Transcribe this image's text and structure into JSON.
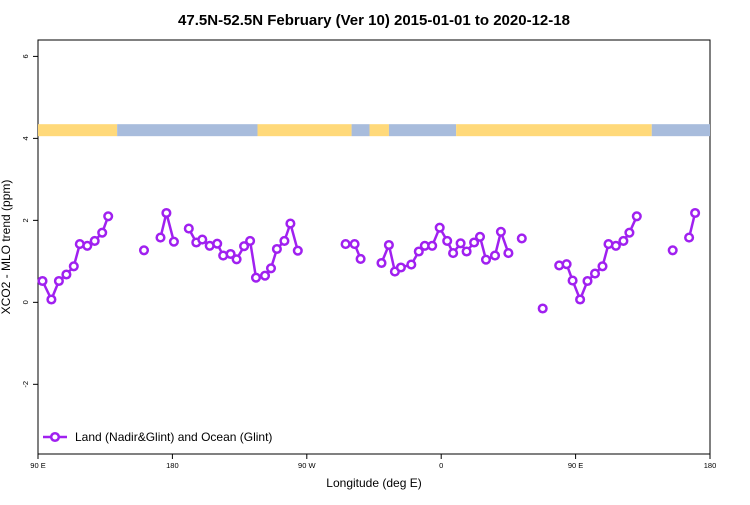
{
  "colors": {
    "series": "#a020f0",
    "land": "#ffd97a",
    "ocean": "#a8bcdc",
    "axis": "#000000",
    "background": "#ffffff"
  },
  "chart_data": {
    "type": "line",
    "title": "47.5N-52.5N February (Ver 10)   2015-01-01 to 2020-12-18",
    "xlabel": "Longitude (deg E)",
    "ylabel": "XCO2 - MLO trend (ppm)",
    "xlim": [
      90,
      540
    ],
    "ylim": [
      -3.7,
      6.4
    ],
    "x_ticks": [
      {
        "value": 90,
        "label": "90 E"
      },
      {
        "value": 180,
        "label": "180"
      },
      {
        "value": 270,
        "label": "90 W"
      },
      {
        "value": 360,
        "label": "0"
      },
      {
        "value": 450,
        "label": "90 E"
      },
      {
        "value": 540,
        "label": "180"
      }
    ],
    "y_ticks": [
      {
        "value": -2,
        "label": "-2"
      },
      {
        "value": 0,
        "label": "0"
      },
      {
        "value": 2,
        "label": "2"
      },
      {
        "value": 4,
        "label": "4"
      },
      {
        "value": 6,
        "label": "6"
      }
    ],
    "legend": {
      "position": "bottom-left",
      "entries": [
        "Land (Nadir&Glint) and Ocean (Glint)"
      ]
    },
    "surface_strip": {
      "y_center": 4.2,
      "segments": [
        {
          "type": "land",
          "from": 90,
          "to": 143
        },
        {
          "type": "ocean",
          "from": 143,
          "to": 237
        },
        {
          "type": "land",
          "from": 237,
          "to": 300
        },
        {
          "type": "ocean",
          "from": 300,
          "to": 312
        },
        {
          "type": "land",
          "from": 312,
          "to": 325
        },
        {
          "type": "ocean",
          "from": 325,
          "to": 370
        },
        {
          "type": "land",
          "from": 370,
          "to": 501
        },
        {
          "type": "ocean",
          "from": 501,
          "to": 540
        }
      ]
    },
    "series": [
      {
        "name": "Land (Nadir&Glint) and Ocean (Glint)",
        "segments": [
          [
            [
              93,
              0.52
            ],
            [
              99,
              0.07
            ],
            [
              104,
              0.52
            ],
            [
              109,
              0.68
            ],
            [
              114,
              0.88
            ],
            [
              118,
              1.42
            ],
            [
              123,
              1.38
            ],
            [
              128,
              1.5
            ],
            [
              133,
              1.7
            ],
            [
              137,
              2.1
            ]
          ],
          [
            [
              161,
              1.27
            ]
          ],
          [
            [
              172,
              1.58
            ],
            [
              176,
              2.18
            ],
            [
              181,
              1.48
            ]
          ],
          [
            [
              191,
              1.8
            ],
            [
              196,
              1.46
            ],
            [
              200,
              1.53
            ],
            [
              205,
              1.38
            ],
            [
              210,
              1.43
            ],
            [
              214,
              1.14
            ],
            [
              219,
              1.18
            ],
            [
              223,
              1.05
            ],
            [
              228,
              1.37
            ],
            [
              232,
              1.5
            ],
            [
              236,
              0.6
            ],
            [
              242,
              0.65
            ],
            [
              246,
              0.83
            ],
            [
              250,
              1.3
            ],
            [
              255,
              1.5
            ],
            [
              259,
              1.92
            ],
            [
              264,
              1.26
            ]
          ],
          [
            [
              296,
              1.42
            ],
            [
              302,
              1.42
            ],
            [
              306,
              1.06
            ]
          ],
          [
            [
              320,
              0.96
            ],
            [
              325,
              1.4
            ],
            [
              329,
              0.75
            ],
            [
              333,
              0.85
            ],
            [
              340,
              0.92
            ],
            [
              345,
              1.24
            ],
            [
              349,
              1.38
            ],
            [
              354,
              1.38
            ],
            [
              359,
              1.82
            ],
            [
              364,
              1.5
            ],
            [
              368,
              1.2
            ],
            [
              373,
              1.44
            ],
            [
              377,
              1.24
            ],
            [
              382,
              1.46
            ],
            [
              386,
              1.6
            ],
            [
              390,
              1.04
            ],
            [
              396,
              1.14
            ],
            [
              400,
              1.72
            ],
            [
              405,
              1.2
            ]
          ],
          [
            [
              414,
              1.56
            ]
          ],
          [
            [
              428,
              -0.15
            ]
          ],
          [
            [
              439,
              0.9
            ],
            [
              444,
              0.93
            ],
            [
              448,
              0.53
            ],
            [
              453,
              0.07
            ],
            [
              458,
              0.52
            ],
            [
              463,
              0.7
            ],
            [
              468,
              0.88
            ],
            [
              472,
              1.42
            ],
            [
              477,
              1.38
            ],
            [
              482,
              1.5
            ],
            [
              486,
              1.7
            ],
            [
              491,
              2.1
            ]
          ],
          [
            [
              515,
              1.27
            ]
          ],
          [
            [
              526,
              1.58
            ],
            [
              530,
              2.18
            ]
          ]
        ]
      }
    ]
  }
}
